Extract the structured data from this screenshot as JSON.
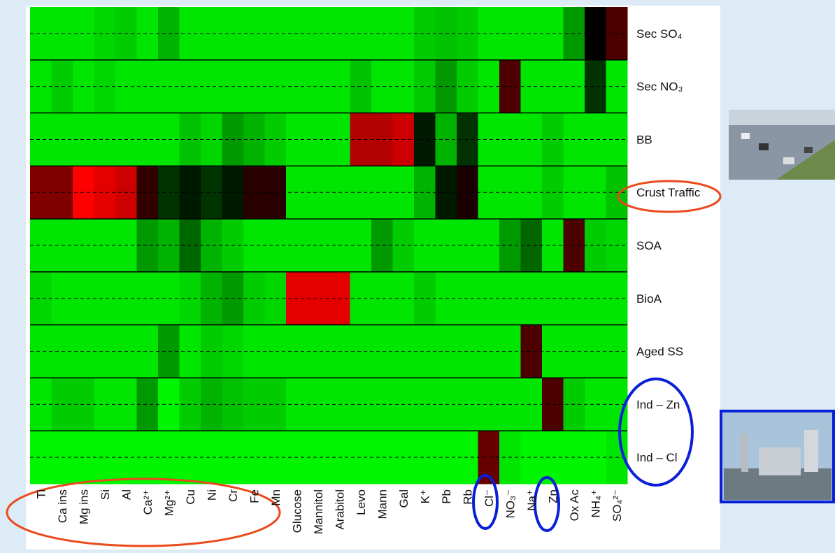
{
  "chart_data": {
    "type": "heatmap",
    "rows": [
      "Sec SO₄",
      "Sec NO₃",
      "BB",
      "Crust Traffic",
      "SOA",
      "BioA",
      "Aged SS",
      "Ind – Zn",
      "Ind – Cl"
    ],
    "columns": [
      "Ti",
      "Ca ins",
      "Mg ins",
      "Si",
      "Al",
      "Ca²⁺",
      "Mg²⁺",
      "Cu",
      "Ni",
      "Cr",
      "Fe",
      "Mn",
      "Glucose",
      "Mannitol",
      "Arabitol",
      "Levo",
      "Mann",
      "Gal",
      "K⁺",
      "Pb",
      "Rb",
      "Cl⁻",
      "NO₃⁻",
      "Na⁺",
      "Zn",
      "Ox Ac",
      "NH₄⁺",
      "SO₄²⁻"
    ],
    "values": [
      [
        0.05,
        0.05,
        0.05,
        0.08,
        0.1,
        0.05,
        0.15,
        0.05,
        0.05,
        0.05,
        0.05,
        0.05,
        0.05,
        0.05,
        0.05,
        0.05,
        0.05,
        0.05,
        0.1,
        0.12,
        0.1,
        0.05,
        0.05,
        0.05,
        0.05,
        0.2,
        0.5,
        0.65
      ],
      [
        0.05,
        0.1,
        0.05,
        0.08,
        0.05,
        0.05,
        0.05,
        0.05,
        0.05,
        0.05,
        0.05,
        0.05,
        0.05,
        0.05,
        0.05,
        0.12,
        0.05,
        0.05,
        0.1,
        0.2,
        0.1,
        0.05,
        0.65,
        0.05,
        0.05,
        0.05,
        0.4,
        0.05
      ],
      [
        0.05,
        0.05,
        0.05,
        0.05,
        0.05,
        0.05,
        0.05,
        0.12,
        0.08,
        0.2,
        0.15,
        0.1,
        0.05,
        0.05,
        0.05,
        0.85,
        0.85,
        0.9,
        0.45,
        0.15,
        0.4,
        0.05,
        0.05,
        0.05,
        0.1,
        0.05,
        0.05,
        0.05
      ],
      [
        0.75,
        0.75,
        1,
        0.95,
        0.9,
        0.6,
        0.4,
        0.45,
        0.4,
        0.45,
        0.58,
        0.58,
        0.05,
        0.05,
        0.05,
        0.05,
        0.05,
        0.05,
        0.15,
        0.45,
        0.55,
        0.05,
        0.05,
        0.05,
        0.1,
        0.05,
        0.05,
        0.12
      ],
      [
        0.05,
        0.05,
        0.05,
        0.05,
        0.05,
        0.2,
        0.15,
        0.3,
        0.15,
        0.1,
        0.05,
        0.05,
        0.05,
        0.05,
        0.05,
        0.05,
        0.2,
        0.1,
        0.05,
        0.05,
        0.05,
        0.05,
        0.2,
        0.3,
        0.05,
        0.65,
        0.1,
        0.08
      ],
      [
        0.08,
        0.05,
        0.05,
        0.05,
        0.05,
        0.05,
        0.05,
        0.08,
        0.15,
        0.2,
        0.1,
        0.08,
        0.95,
        0.95,
        0.95,
        0.05,
        0.05,
        0.05,
        0.1,
        0.05,
        0.05,
        0.05,
        0.05,
        0.05,
        0.05,
        0.05,
        0.05,
        0.05
      ],
      [
        0.05,
        0.05,
        0.05,
        0.05,
        0.05,
        0.05,
        0.2,
        0.05,
        0.1,
        0.08,
        0.05,
        0.05,
        0.05,
        0.05,
        0.05,
        0.05,
        0.05,
        0.05,
        0.05,
        0.05,
        0.05,
        0.05,
        0.05,
        0.65,
        0.05,
        0.05,
        0.05,
        0.05
      ],
      [
        0.05,
        0.1,
        0.1,
        0.05,
        0.05,
        0.2,
        0.02,
        0.1,
        0.15,
        0.12,
        0.1,
        0.1,
        0.05,
        0.05,
        0.05,
        0.05,
        0.05,
        0.05,
        0.05,
        0.05,
        0.05,
        0.05,
        0.05,
        0.05,
        0.65,
        0.1,
        0.05,
        0.05
      ],
      [
        0.02,
        0.02,
        0.02,
        0.02,
        0.02,
        0.02,
        0.02,
        0.02,
        0.02,
        0.02,
        0.02,
        0.02,
        0.02,
        0.02,
        0.02,
        0.02,
        0.02,
        0.02,
        0.02,
        0.02,
        0.02,
        0.7,
        0.05,
        0.02,
        0.02,
        0.02,
        0.02,
        0.05
      ]
    ],
    "zlim": [
      0,
      1
    ],
    "colors": [
      "#00ff00",
      "#000000",
      "#ff0000"
    ]
  }
}
